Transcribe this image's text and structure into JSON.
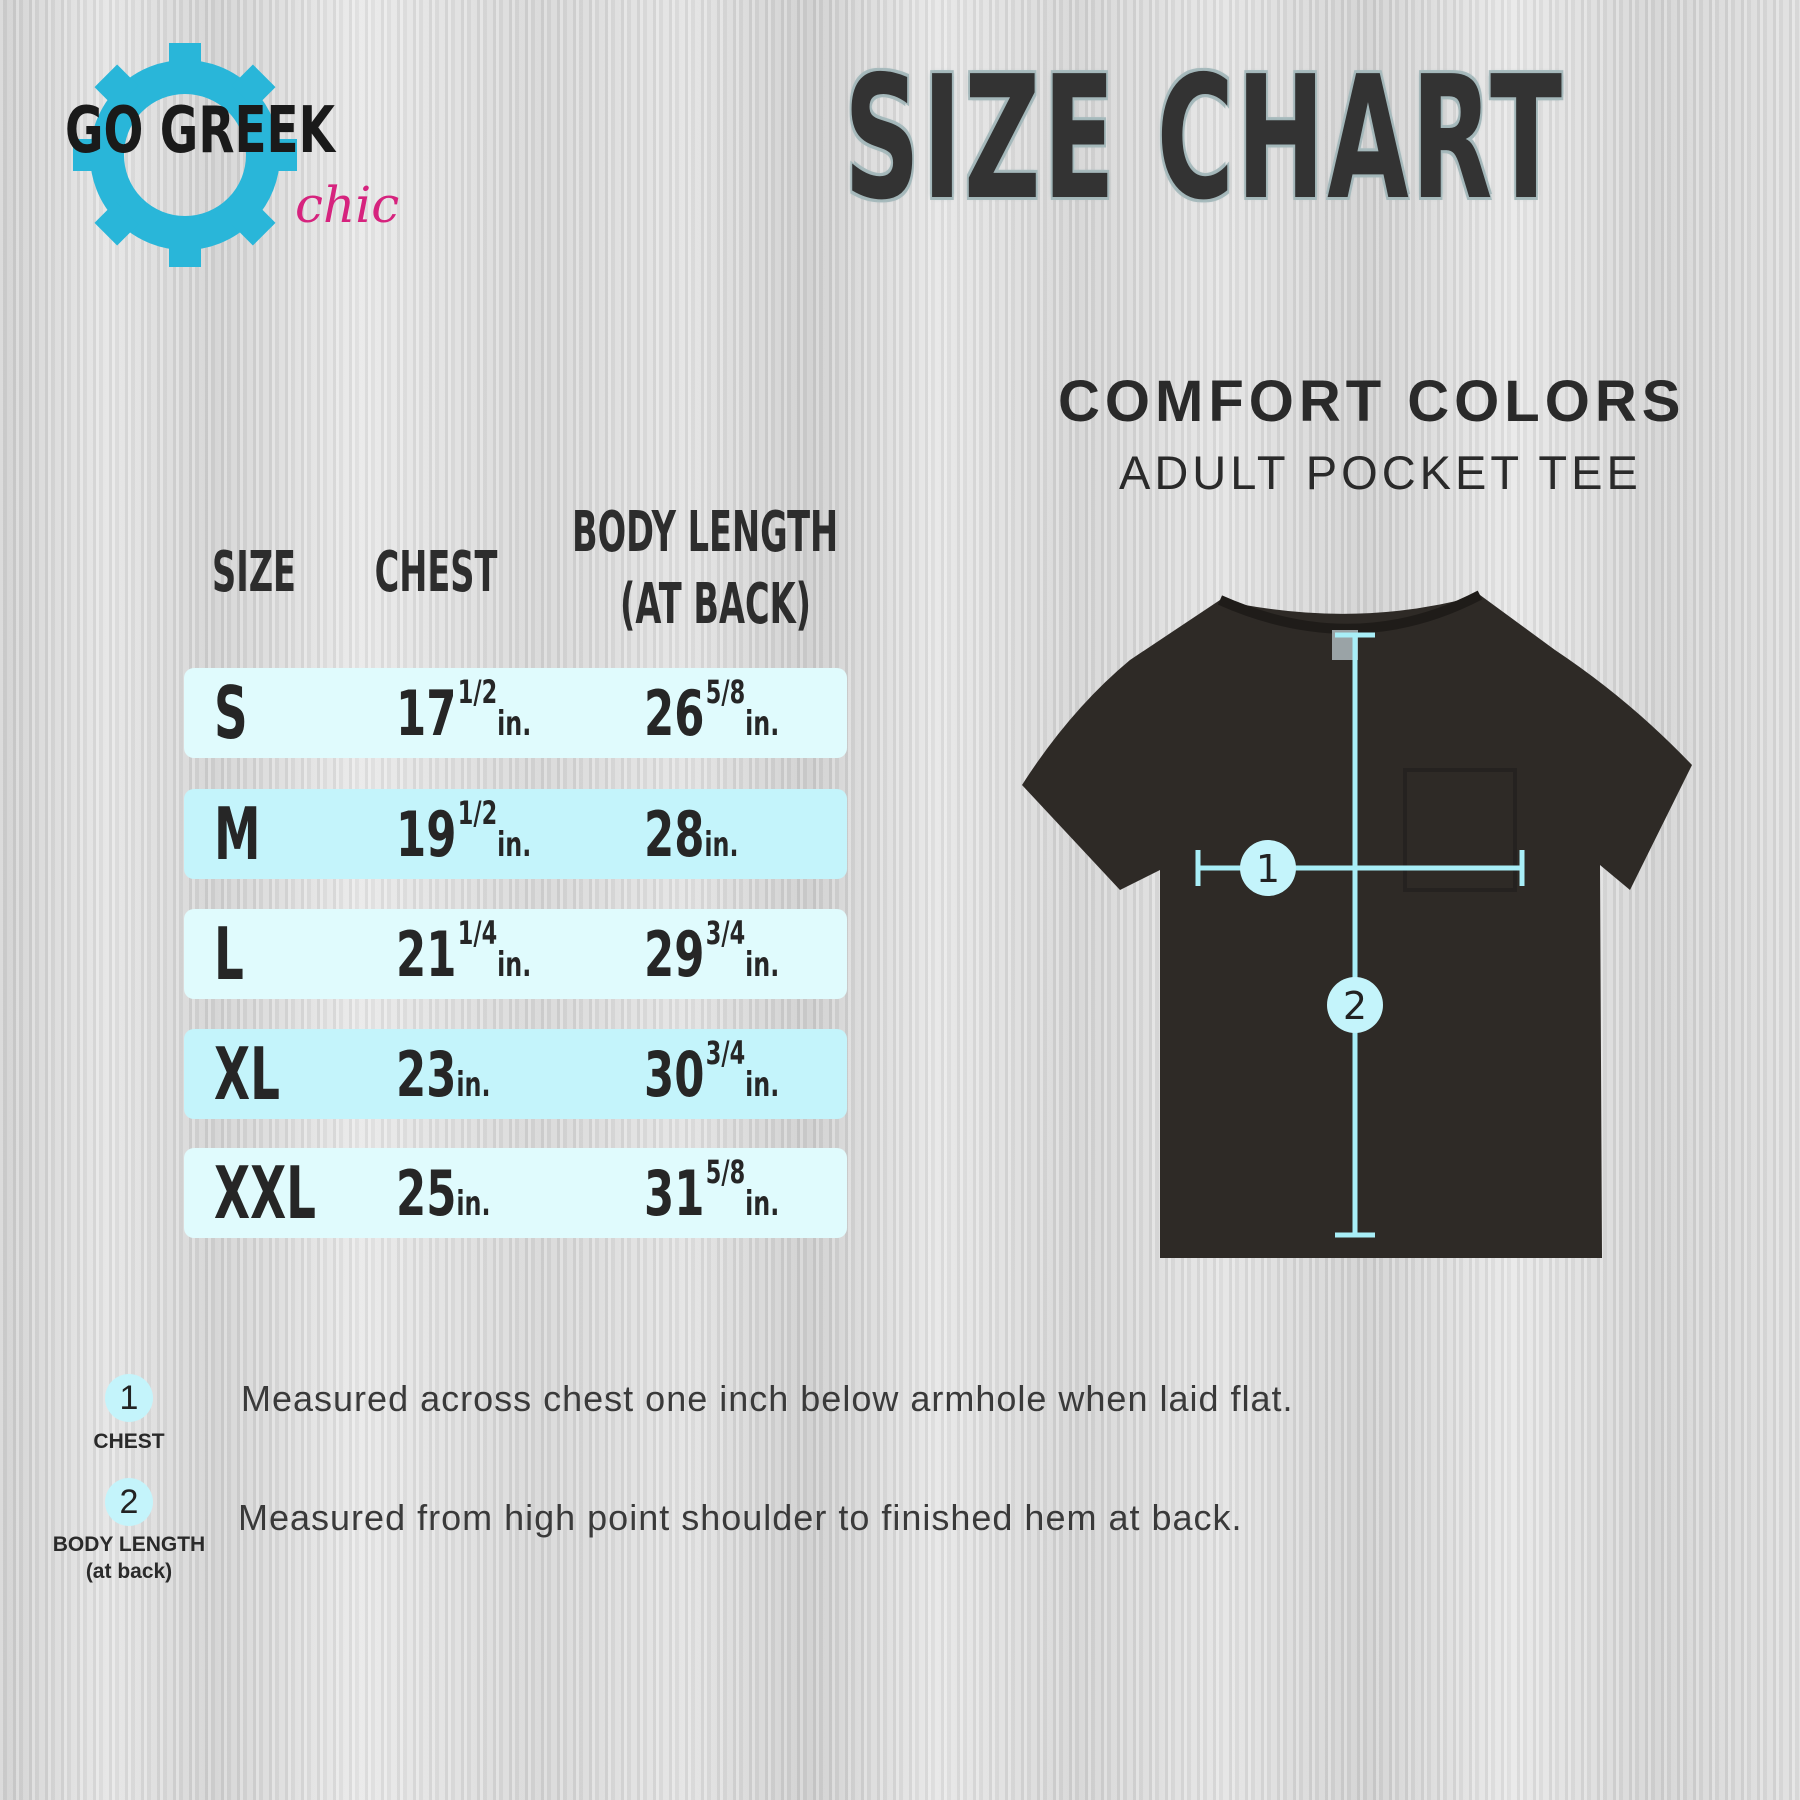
{
  "logo": {
    "text_main": "GO GREEK",
    "text_script": "chic",
    "gear_color": "#29b6d9",
    "script_color": "#d6237e"
  },
  "title": "SIZE CHART",
  "brand": "COMFORT COLORS",
  "product": "ADULT POCKET TEE",
  "table": {
    "headers": {
      "size": "SIZE",
      "chest": "CHEST",
      "body_line1": "BODY LENGTH",
      "body_line2": "(AT BACK)"
    },
    "row_colors": [
      "#e0fbfd",
      "#c4f4fb"
    ],
    "rows": [
      {
        "size": "S",
        "chest_whole": "17",
        "chest_frac_num": "1",
        "chest_frac_den": "2",
        "chest_unit": "in.",
        "body_whole": "26",
        "body_frac_num": "5",
        "body_frac_den": "8",
        "body_unit": "in."
      },
      {
        "size": "M",
        "chest_whole": "19",
        "chest_frac_num": "1",
        "chest_frac_den": "2",
        "chest_unit": "in.",
        "body_whole": "28",
        "body_frac_num": "",
        "body_frac_den": "",
        "body_unit": "in."
      },
      {
        "size": "L",
        "chest_whole": "21",
        "chest_frac_num": "1",
        "chest_frac_den": "4",
        "chest_unit": "in.",
        "body_whole": "29",
        "body_frac_num": "3",
        "body_frac_den": "4",
        "body_unit": "in."
      },
      {
        "size": "XL",
        "chest_whole": "23",
        "chest_frac_num": "",
        "chest_frac_den": "",
        "chest_unit": "in.",
        "body_whole": "30",
        "body_frac_num": "3",
        "body_frac_den": "4",
        "body_unit": "in."
      },
      {
        "size": "XXL",
        "chest_whole": "25",
        "chest_frac_num": "",
        "chest_frac_den": "",
        "chest_unit": "in.",
        "body_whole": "31",
        "body_frac_num": "5",
        "body_frac_den": "8",
        "body_unit": "in."
      }
    ]
  },
  "shirt": {
    "color": "#2e2a26",
    "measure_color": "#a8eef7",
    "marker_1": "1",
    "marker_2": "2"
  },
  "legend": [
    {
      "number": "1",
      "label": "CHEST",
      "sublabel": "",
      "text": "Measured across chest one inch below armhole when laid flat."
    },
    {
      "number": "2",
      "label": "BODY LENGTH",
      "sublabel": "(at back)",
      "text": "Measured from high point shoulder to finished hem at back."
    }
  ]
}
